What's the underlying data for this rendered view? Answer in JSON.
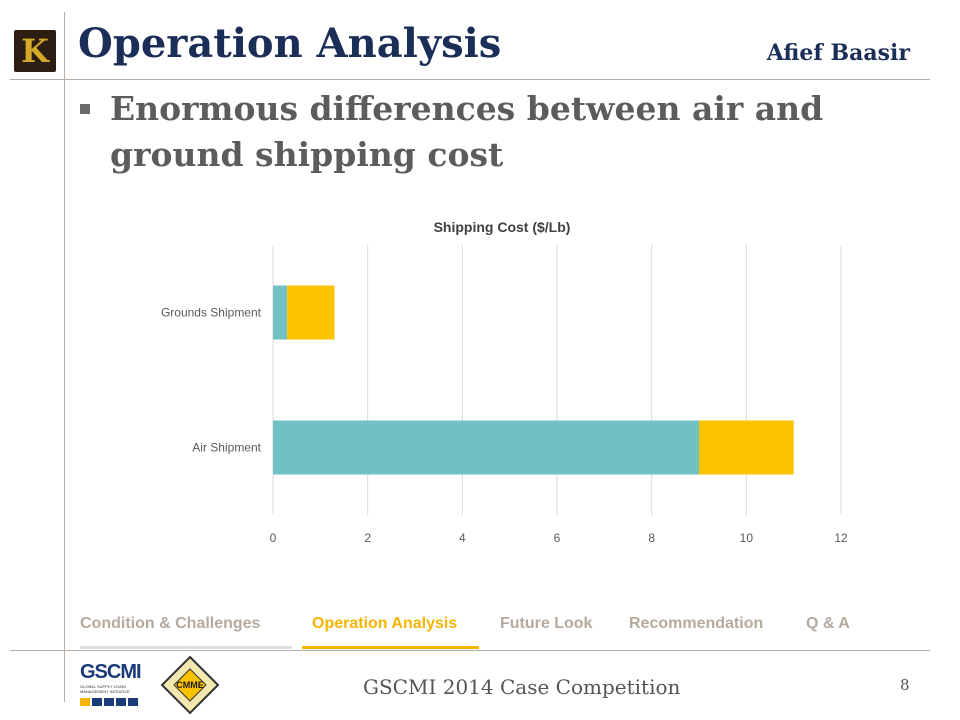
{
  "slide": {
    "title": "Operation Analysis",
    "author": "Afief Baasir",
    "bullet": "Enormous differences between air and ground shipping cost",
    "footer": "GSCMI 2014 Case Competition",
    "page_number": "8",
    "logo_letter": "K"
  },
  "nav": {
    "items": [
      "Condition & Challenges",
      "Operation Analysis",
      "Future Look",
      "Recommendation",
      "Q & A"
    ],
    "active_index": 1
  },
  "footer_logos": {
    "gscmi": "GSCMI",
    "gscmi_sub": "GLOBAL SUPPLY CHAIN MANAGEMENT INITIATIVE",
    "cmme": "CMME"
  },
  "chart_data": {
    "type": "bar",
    "orientation": "horizontal",
    "stacked": true,
    "title": "Shipping Cost ($/Lb)",
    "categories": [
      "Grounds Shipment",
      "Air Shipment"
    ],
    "series": [
      {
        "values": [
          0.3,
          9.0
        ],
        "color": "#72bfc4"
      },
      {
        "values": [
          1.0,
          2.0
        ],
        "color": "#fbc200"
      }
    ],
    "xlim": [
      0,
      12
    ],
    "xticks": [
      "0",
      "2",
      "4",
      "6",
      "8",
      "10",
      "12"
    ],
    "grid": true,
    "legend": "none"
  },
  "colors": {
    "title": "#1a2e58",
    "accent": "#f5b400",
    "nav_inactive": "#b6aa9e",
    "rule": "#b9aea4"
  }
}
